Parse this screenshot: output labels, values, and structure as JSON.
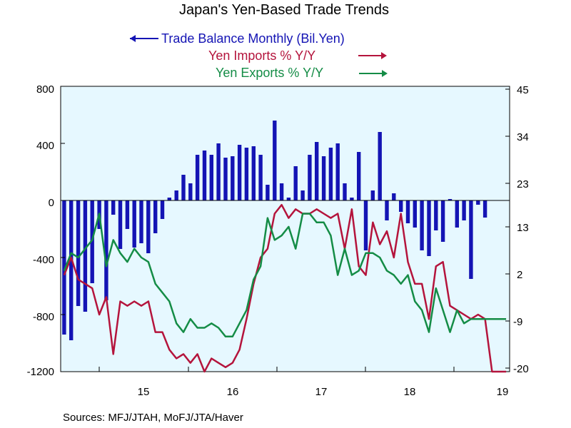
{
  "chart_data": {
    "type": "bar+line",
    "title": "Japan's Yen-Based Trade Trends",
    "source": "Sources:  MFJ/JTAH, MoFJ/JTA/Haver",
    "x_tick_labels": [
      "15",
      "16",
      "17",
      "18",
      "19"
    ],
    "y_left": {
      "ticks": [
        "800",
        "400",
        "0",
        "-400",
        "-800",
        "-1200"
      ],
      "range": [
        -1200,
        800
      ]
    },
    "y_right": {
      "ticks": [
        "45",
        "34",
        "23",
        "13",
        "2",
        "-9",
        "-20"
      ],
      "range": [
        -20,
        45
      ]
    },
    "x_months": [
      "Mar-14",
      "Apr-14",
      "May-14",
      "Jun-14",
      "Jul-14",
      "Aug-14",
      "Sep-14",
      "Oct-14",
      "Nov-14",
      "Dec-14",
      "Jan-15",
      "Feb-15",
      "Mar-15",
      "Apr-15",
      "May-15",
      "Jun-15",
      "Jul-15",
      "Aug-15",
      "Sep-15",
      "Oct-15",
      "Nov-15",
      "Dec-15",
      "Jan-16",
      "Feb-16",
      "Mar-16",
      "Apr-16",
      "May-16",
      "Jun-16",
      "Jul-16",
      "Aug-16",
      "Sep-16",
      "Oct-16",
      "Nov-16",
      "Dec-16",
      "Jan-17",
      "Feb-17",
      "Mar-17",
      "Apr-17",
      "May-17",
      "Jun-17",
      "Jul-17",
      "Aug-17",
      "Sep-17",
      "Oct-17",
      "Nov-17",
      "Dec-17",
      "Jan-18",
      "Feb-18",
      "Mar-18",
      "Apr-18",
      "May-18",
      "Jun-18",
      "Jul-18",
      "Aug-18",
      "Sep-18",
      "Oct-18",
      "Nov-18",
      "Dec-18",
      "Jan-19",
      "Feb-19",
      "Mar-19",
      "Apr-19",
      "May-19",
      "Jun-19"
    ],
    "series": [
      {
        "name": "Trade Balance Monthly (Bil.Yen)",
        "kind": "bar",
        "axis": "left",
        "color": "#1414b4",
        "arrow": "left",
        "values": [
          -940,
          -980,
          -740,
          -780,
          -580,
          -200,
          -700,
          -100,
          -340,
          -200,
          -330,
          -300,
          -370,
          -230,
          -130,
          20,
          70,
          180,
          120,
          320,
          350,
          320,
          400,
          300,
          310,
          390,
          370,
          380,
          320,
          110,
          560,
          120,
          20,
          240,
          70,
          320,
          410,
          310,
          370,
          400,
          120,
          20,
          340,
          -350,
          70,
          480,
          -140,
          50,
          -80,
          -160,
          -190,
          -350,
          -390,
          -210,
          -290,
          10,
          -190,
          -140,
          -550,
          -30,
          -120,
          0,
          0,
          0
        ]
      },
      {
        "name": "Yen Imports % Y/Y",
        "kind": "line",
        "axis": "right",
        "color": "#b4143c",
        "arrow": "right",
        "values": [
          2,
          6,
          1,
          0,
          -1,
          -7,
          -3,
          -16,
          -4,
          -5,
          -4,
          -5,
          -4,
          -11,
          -11,
          -15,
          -17,
          -16,
          -18,
          -16,
          -20,
          -17,
          -18,
          -19,
          -18,
          -15,
          -8,
          0,
          6,
          8,
          16,
          18,
          15,
          17,
          16,
          16,
          17,
          16,
          15,
          16,
          8,
          17,
          4,
          2,
          14,
          9,
          12,
          6,
          16,
          5,
          0,
          0,
          -8,
          4,
          5,
          -5,
          -6,
          -7,
          -8,
          -7,
          -8,
          -20,
          -20,
          -20
        ]
      },
      {
        "name": "Yen Exports % Y/Y",
        "kind": "line",
        "axis": "right",
        "color": "#148c46",
        "arrow": "right",
        "values": [
          3,
          7,
          6,
          8,
          10,
          16,
          4,
          10,
          7,
          5,
          8,
          6,
          5,
          0,
          -2,
          -4,
          -9,
          -11,
          -8,
          -10,
          -10,
          -9,
          -10,
          -12,
          -12,
          -9,
          -6,
          1,
          4,
          15,
          10,
          11,
          13,
          8,
          16,
          16,
          14,
          14,
          11,
          2,
          8,
          2,
          3,
          7,
          7,
          6,
          3,
          2,
          0,
          2,
          -4,
          -6,
          -11,
          -1,
          -6,
          -11,
          -6,
          -9,
          -8,
          -8,
          -8,
          -8,
          -8,
          -8
        ]
      }
    ]
  }
}
